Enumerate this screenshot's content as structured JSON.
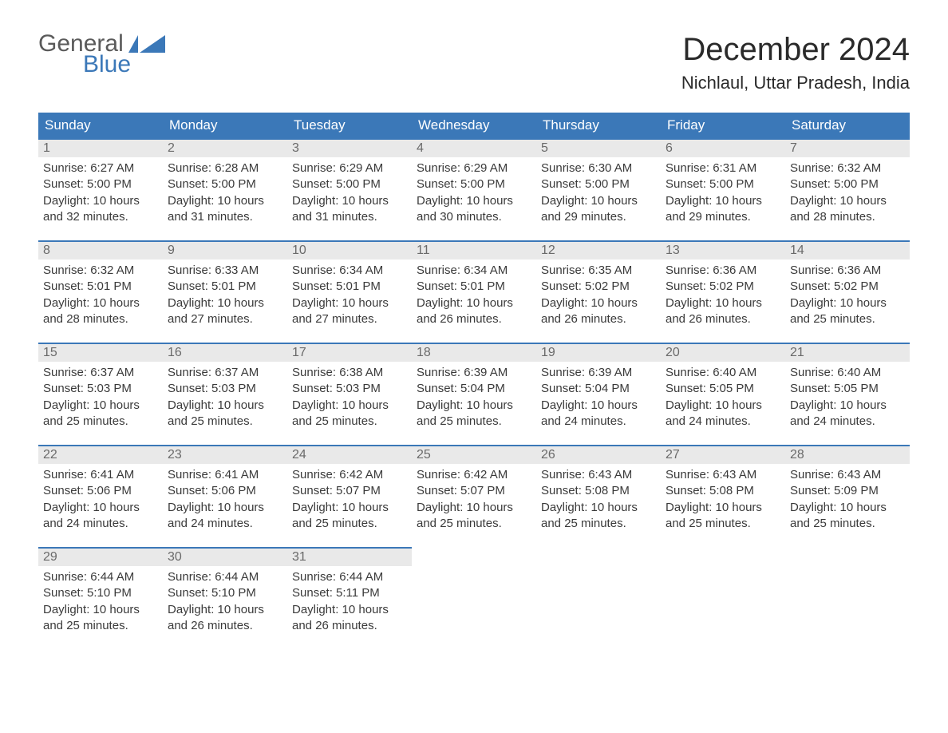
{
  "logo": {
    "general": "General",
    "blue": "Blue"
  },
  "title": "December 2024",
  "location": "Nichlaul, Uttar Pradesh, India",
  "colors": {
    "header_bg": "#3b78b8",
    "header_text": "#ffffff",
    "daynum_bg": "#e9e9e9",
    "daynum_border": "#3b78b8",
    "body_text": "#3a3a3a",
    "logo_gray": "#5a5a5a",
    "logo_blue": "#3b78b8"
  },
  "typography": {
    "title_fontsize": 40,
    "location_fontsize": 22,
    "weekday_fontsize": 17,
    "body_fontsize": 15,
    "daynum_fontsize": 16,
    "logo_fontsize": 30
  },
  "weekdays": [
    "Sunday",
    "Monday",
    "Tuesday",
    "Wednesday",
    "Thursday",
    "Friday",
    "Saturday"
  ],
  "labels": {
    "sunrise_prefix": "Sunrise: ",
    "sunset_prefix": "Sunset: ",
    "daylight_prefix": "Daylight: ",
    "and_minutes_suffix": " minutes."
  },
  "weeks": [
    [
      {
        "day": "1",
        "sunrise": "6:27 AM",
        "sunset": "5:00 PM",
        "daylight_hours": "10 hours",
        "minutes": "32"
      },
      {
        "day": "2",
        "sunrise": "6:28 AM",
        "sunset": "5:00 PM",
        "daylight_hours": "10 hours",
        "minutes": "31"
      },
      {
        "day": "3",
        "sunrise": "6:29 AM",
        "sunset": "5:00 PM",
        "daylight_hours": "10 hours",
        "minutes": "31"
      },
      {
        "day": "4",
        "sunrise": "6:29 AM",
        "sunset": "5:00 PM",
        "daylight_hours": "10 hours",
        "minutes": "30"
      },
      {
        "day": "5",
        "sunrise": "6:30 AM",
        "sunset": "5:00 PM",
        "daylight_hours": "10 hours",
        "minutes": "29"
      },
      {
        "day": "6",
        "sunrise": "6:31 AM",
        "sunset": "5:00 PM",
        "daylight_hours": "10 hours",
        "minutes": "29"
      },
      {
        "day": "7",
        "sunrise": "6:32 AM",
        "sunset": "5:00 PM",
        "daylight_hours": "10 hours",
        "minutes": "28"
      }
    ],
    [
      {
        "day": "8",
        "sunrise": "6:32 AM",
        "sunset": "5:01 PM",
        "daylight_hours": "10 hours",
        "minutes": "28"
      },
      {
        "day": "9",
        "sunrise": "6:33 AM",
        "sunset": "5:01 PM",
        "daylight_hours": "10 hours",
        "minutes": "27"
      },
      {
        "day": "10",
        "sunrise": "6:34 AM",
        "sunset": "5:01 PM",
        "daylight_hours": "10 hours",
        "minutes": "27"
      },
      {
        "day": "11",
        "sunrise": "6:34 AM",
        "sunset": "5:01 PM",
        "daylight_hours": "10 hours",
        "minutes": "26"
      },
      {
        "day": "12",
        "sunrise": "6:35 AM",
        "sunset": "5:02 PM",
        "daylight_hours": "10 hours",
        "minutes": "26"
      },
      {
        "day": "13",
        "sunrise": "6:36 AM",
        "sunset": "5:02 PM",
        "daylight_hours": "10 hours",
        "minutes": "26"
      },
      {
        "day": "14",
        "sunrise": "6:36 AM",
        "sunset": "5:02 PM",
        "daylight_hours": "10 hours",
        "minutes": "25"
      }
    ],
    [
      {
        "day": "15",
        "sunrise": "6:37 AM",
        "sunset": "5:03 PM",
        "daylight_hours": "10 hours",
        "minutes": "25"
      },
      {
        "day": "16",
        "sunrise": "6:37 AM",
        "sunset": "5:03 PM",
        "daylight_hours": "10 hours",
        "minutes": "25"
      },
      {
        "day": "17",
        "sunrise": "6:38 AM",
        "sunset": "5:03 PM",
        "daylight_hours": "10 hours",
        "minutes": "25"
      },
      {
        "day": "18",
        "sunrise": "6:39 AM",
        "sunset": "5:04 PM",
        "daylight_hours": "10 hours",
        "minutes": "25"
      },
      {
        "day": "19",
        "sunrise": "6:39 AM",
        "sunset": "5:04 PM",
        "daylight_hours": "10 hours",
        "minutes": "24"
      },
      {
        "day": "20",
        "sunrise": "6:40 AM",
        "sunset": "5:05 PM",
        "daylight_hours": "10 hours",
        "minutes": "24"
      },
      {
        "day": "21",
        "sunrise": "6:40 AM",
        "sunset": "5:05 PM",
        "daylight_hours": "10 hours",
        "minutes": "24"
      }
    ],
    [
      {
        "day": "22",
        "sunrise": "6:41 AM",
        "sunset": "5:06 PM",
        "daylight_hours": "10 hours",
        "minutes": "24"
      },
      {
        "day": "23",
        "sunrise": "6:41 AM",
        "sunset": "5:06 PM",
        "daylight_hours": "10 hours",
        "minutes": "24"
      },
      {
        "day": "24",
        "sunrise": "6:42 AM",
        "sunset": "5:07 PM",
        "daylight_hours": "10 hours",
        "minutes": "25"
      },
      {
        "day": "25",
        "sunrise": "6:42 AM",
        "sunset": "5:07 PM",
        "daylight_hours": "10 hours",
        "minutes": "25"
      },
      {
        "day": "26",
        "sunrise": "6:43 AM",
        "sunset": "5:08 PM",
        "daylight_hours": "10 hours",
        "minutes": "25"
      },
      {
        "day": "27",
        "sunrise": "6:43 AM",
        "sunset": "5:08 PM",
        "daylight_hours": "10 hours",
        "minutes": "25"
      },
      {
        "day": "28",
        "sunrise": "6:43 AM",
        "sunset": "5:09 PM",
        "daylight_hours": "10 hours",
        "minutes": "25"
      }
    ],
    [
      {
        "day": "29",
        "sunrise": "6:44 AM",
        "sunset": "5:10 PM",
        "daylight_hours": "10 hours",
        "minutes": "25"
      },
      {
        "day": "30",
        "sunrise": "6:44 AM",
        "sunset": "5:10 PM",
        "daylight_hours": "10 hours",
        "minutes": "26"
      },
      {
        "day": "31",
        "sunrise": "6:44 AM",
        "sunset": "5:11 PM",
        "daylight_hours": "10 hours",
        "minutes": "26"
      },
      {
        "empty": true
      },
      {
        "empty": true
      },
      {
        "empty": true
      },
      {
        "empty": true
      }
    ]
  ]
}
